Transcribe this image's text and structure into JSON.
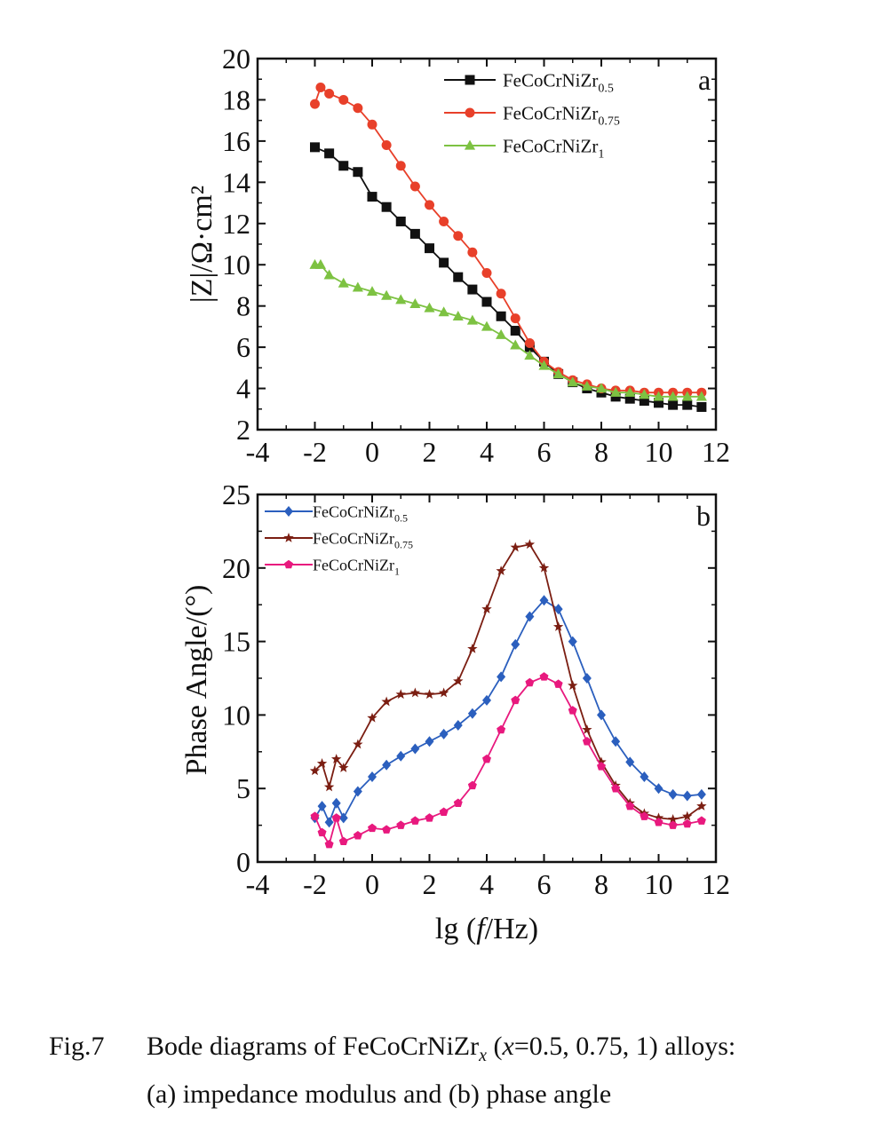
{
  "figure": {
    "panels": [
      {
        "id": "a",
        "letter": "a",
        "ylabel": "|Z|/Ω·cm²",
        "xticks": [
          "-4",
          "-2",
          "0",
          "2",
          "4",
          "6",
          "8",
          "10",
          "12"
        ],
        "yticks": [
          "2",
          "4",
          "6",
          "8",
          "10",
          "12",
          "14",
          "16",
          "18",
          "20"
        ],
        "legend": [
          {
            "base": "FeCoCrNiZr",
            "sub": "0.5",
            "color": "#111111",
            "marker": "square"
          },
          {
            "base": "FeCoCrNiZr",
            "sub": "0.75",
            "color": "#e8402a",
            "marker": "circle"
          },
          {
            "base": "FeCoCrNiZr",
            "sub": "1",
            "color": "#7dc242",
            "marker": "triangle"
          }
        ]
      },
      {
        "id": "b",
        "letter": "b",
        "ylabel": "Phase Angle/(°)",
        "xlabel_prefix": "lg (",
        "xlabel_var": "f",
        "xlabel_suffix": "/Hz)",
        "xticks": [
          "-4",
          "-2",
          "0",
          "2",
          "4",
          "6",
          "8",
          "10",
          "12"
        ],
        "yticks": [
          "0",
          "5",
          "10",
          "15",
          "20",
          "25"
        ],
        "legend": [
          {
            "base": "FeCoCrNiZr",
            "sub": "0.5",
            "color": "#2b5fbe",
            "marker": "diamond"
          },
          {
            "base": "FeCoCrNiZr",
            "sub": "0.75",
            "color": "#7b1e12",
            "marker": "star"
          },
          {
            "base": "FeCoCrNiZr",
            "sub": "1",
            "color": "#e8197e",
            "marker": "pentagon"
          }
        ]
      }
    ]
  },
  "chart_data": [
    {
      "type": "scatter",
      "panel": "a",
      "title": "",
      "xlabel": "",
      "ylabel": "|Z|/Ω·cm²",
      "xlim": [
        -4,
        12
      ],
      "ylim": [
        2,
        20
      ],
      "grid": false,
      "legend_position": "top-right",
      "series": [
        {
          "name": "FeCoCrNiZr0.5",
          "color": "#111111",
          "marker": "square",
          "x": [
            -2,
            -1.5,
            -1,
            -0.5,
            0,
            0.5,
            1,
            1.5,
            2,
            2.5,
            3,
            3.5,
            4,
            4.5,
            5,
            5.5,
            6,
            6.5,
            7,
            7.5,
            8,
            8.5,
            9,
            9.5,
            10,
            10.5,
            11,
            11.5
          ],
          "y": [
            15.7,
            15.4,
            14.8,
            14.5,
            13.3,
            12.8,
            12.1,
            11.5,
            10.8,
            10.1,
            9.4,
            8.8,
            8.2,
            7.5,
            6.8,
            6.0,
            5.3,
            4.7,
            4.3,
            4.0,
            3.8,
            3.6,
            3.5,
            3.4,
            3.3,
            3.2,
            3.2,
            3.1
          ]
        },
        {
          "name": "FeCoCrNiZr0.75",
          "color": "#e8402a",
          "marker": "circle",
          "x": [
            -2,
            -1.8,
            -1.5,
            -1,
            -0.5,
            0,
            0.5,
            1,
            1.5,
            2,
            2.5,
            3,
            3.5,
            4,
            4.5,
            5,
            5.5,
            6,
            6.5,
            7,
            7.5,
            8,
            8.5,
            9,
            9.5,
            10,
            10.5,
            11,
            11.5
          ],
          "y": [
            17.8,
            18.6,
            18.3,
            18.0,
            17.6,
            16.8,
            15.8,
            14.8,
            13.8,
            12.9,
            12.1,
            11.4,
            10.6,
            9.6,
            8.6,
            7.4,
            6.2,
            5.3,
            4.8,
            4.4,
            4.2,
            4.0,
            3.9,
            3.9,
            3.8,
            3.8,
            3.8,
            3.8,
            3.8
          ]
        },
        {
          "name": "FeCoCrNiZr1",
          "color": "#7dc242",
          "marker": "triangle",
          "x": [
            -2,
            -1.8,
            -1.5,
            -1,
            -0.5,
            0,
            0.5,
            1,
            1.5,
            2,
            2.5,
            3,
            3.5,
            4,
            4.5,
            5,
            5.5,
            6,
            6.5,
            7,
            7.5,
            8,
            8.5,
            9,
            9.5,
            10,
            10.5,
            11,
            11.5
          ],
          "y": [
            10.0,
            10.0,
            9.5,
            9.1,
            8.9,
            8.7,
            8.5,
            8.3,
            8.1,
            7.9,
            7.7,
            7.5,
            7.3,
            7.0,
            6.6,
            6.1,
            5.6,
            5.1,
            4.7,
            4.3,
            4.1,
            4.0,
            3.8,
            3.8,
            3.7,
            3.6,
            3.6,
            3.6,
            3.6
          ]
        }
      ]
    },
    {
      "type": "line",
      "panel": "b",
      "title": "",
      "xlabel": "lg (f/Hz)",
      "ylabel": "Phase Angle/(°)",
      "xlim": [
        -4,
        12
      ],
      "ylim": [
        0,
        25
      ],
      "grid": false,
      "legend_position": "top-left",
      "series": [
        {
          "name": "FeCoCrNiZr0.5",
          "color": "#2b5fbe",
          "marker": "diamond",
          "x": [
            -2,
            -1.75,
            -1.5,
            -1.25,
            -1,
            -0.5,
            0,
            0.5,
            1,
            1.5,
            2,
            2.5,
            3,
            3.5,
            4,
            4.5,
            5,
            5.5,
            6,
            6.5,
            7,
            7.5,
            8,
            8.5,
            9,
            9.5,
            10,
            10.5,
            11,
            11.5
          ],
          "y": [
            3.0,
            3.8,
            2.7,
            4.0,
            3.0,
            4.8,
            5.8,
            6.6,
            7.2,
            7.7,
            8.2,
            8.7,
            9.3,
            10.1,
            11.0,
            12.6,
            14.8,
            16.7,
            17.8,
            17.2,
            15.0,
            12.5,
            10.0,
            8.2,
            6.8,
            5.8,
            5.0,
            4.6,
            4.5,
            4.6
          ]
        },
        {
          "name": "FeCoCrNiZr0.75",
          "color": "#7b1e12",
          "marker": "star",
          "x": [
            -2,
            -1.75,
            -1.5,
            -1.25,
            -1,
            -0.5,
            0,
            0.5,
            1,
            1.5,
            2,
            2.5,
            3,
            3.5,
            4,
            4.5,
            5,
            5.5,
            6,
            6.5,
            7,
            7.5,
            8,
            8.5,
            9,
            9.5,
            10,
            10.5,
            11,
            11.5
          ],
          "y": [
            6.2,
            6.7,
            5.1,
            7.0,
            6.4,
            8.0,
            9.8,
            10.9,
            11.4,
            11.5,
            11.4,
            11.5,
            12.3,
            14.5,
            17.2,
            19.8,
            21.4,
            21.6,
            20.0,
            16.0,
            12.0,
            9.0,
            6.8,
            5.2,
            4.0,
            3.3,
            3.0,
            2.9,
            3.1,
            3.8
          ]
        },
        {
          "name": "FeCoCrNiZr1",
          "color": "#e8197e",
          "marker": "pentagon",
          "x": [
            -2,
            -1.75,
            -1.5,
            -1.25,
            -1,
            -0.5,
            0,
            0.5,
            1,
            1.5,
            2,
            2.5,
            3,
            3.5,
            4,
            4.5,
            5,
            5.5,
            6,
            6.5,
            7,
            7.5,
            8,
            8.5,
            9,
            9.5,
            10,
            10.5,
            11,
            11.5
          ],
          "y": [
            3.1,
            2.0,
            1.2,
            3.0,
            1.4,
            1.8,
            2.3,
            2.2,
            2.5,
            2.8,
            3.0,
            3.4,
            4.0,
            5.2,
            7.0,
            9.0,
            11.0,
            12.2,
            12.6,
            12.1,
            10.3,
            8.2,
            6.5,
            5.0,
            3.8,
            3.1,
            2.7,
            2.5,
            2.6,
            2.8
          ]
        }
      ]
    }
  ],
  "caption": {
    "fig_label": "Fig.7",
    "line1_pre": "Bode diagrams of FeCoCrNiZr",
    "line1_sub": "x",
    "line1_paren_open": " (",
    "line1_var": "x",
    "line1_post": "=0.5, 0.75, 1) alloys:",
    "line2": "(a) impedance modulus and (b) phase angle"
  }
}
